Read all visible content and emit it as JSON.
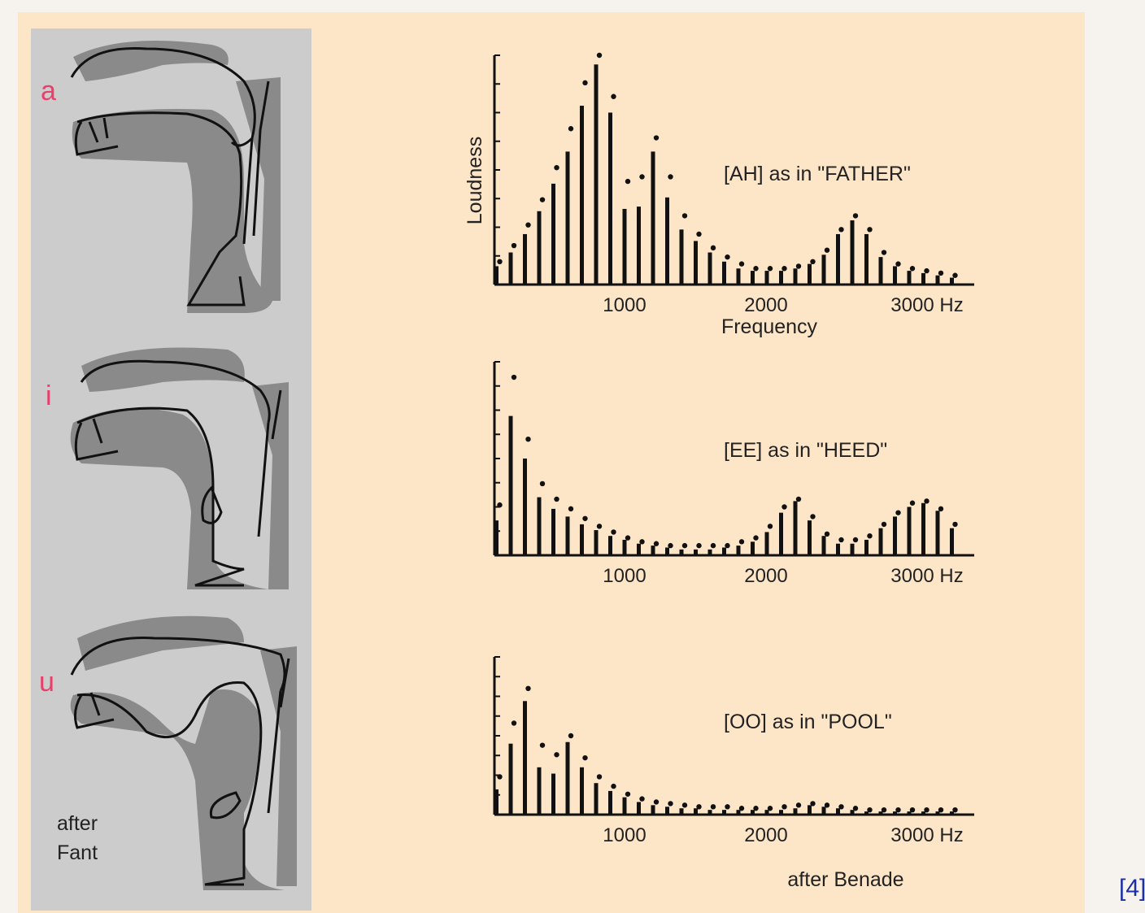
{
  "vowels": [
    {
      "letter": "a",
      "label": "[AH] as in \"FATHER\""
    },
    {
      "letter": "i",
      "label": "[EE] as in \"HEED\""
    },
    {
      "letter": "u",
      "label": "[OO] as in \"POOL\""
    }
  ],
  "credits": {
    "left": "after\nFant",
    "right": "after Benade"
  },
  "reference": "[4]",
  "colors": {
    "vowel_letter": "#e8406a",
    "panel_background": "#fde5c8",
    "vocal_tract_background": "#cccccc",
    "tract_fill": "#8a8a8a"
  },
  "axes": {
    "x_ticks": [
      "1000",
      "2000",
      "3000 Hz"
    ],
    "xlabel": "Frequency",
    "ylabel": "Loudness"
  },
  "chart_data": [
    {
      "type": "bar",
      "title": "[AH] as in \"FATHER\"",
      "xlabel": "Frequency",
      "ylabel": "Loudness",
      "x_ticks": [
        "1000",
        "2000",
        "3000 Hz"
      ],
      "x": [
        100,
        200,
        300,
        400,
        500,
        600,
        700,
        800,
        900,
        1000,
        1100,
        1200,
        1300,
        1400,
        1500,
        1600,
        1700,
        1800,
        1900,
        2000,
        2100,
        2200,
        2300,
        2400,
        2500,
        2600,
        2700,
        2800,
        2900,
        3000,
        3100,
        3200,
        3300
      ],
      "values": [
        0.08,
        0.14,
        0.22,
        0.32,
        0.44,
        0.58,
        0.78,
        0.96,
        0.75,
        0.33,
        0.34,
        0.58,
        0.38,
        0.24,
        0.19,
        0.14,
        0.1,
        0.07,
        0.06,
        0.06,
        0.06,
        0.07,
        0.09,
        0.13,
        0.22,
        0.28,
        0.22,
        0.12,
        0.08,
        0.06,
        0.05,
        0.04,
        0.03
      ],
      "envelope": [
        0.1,
        0.17,
        0.26,
        0.37,
        0.51,
        0.68,
        0.88,
        1.0,
        0.82,
        0.45,
        0.47,
        0.64,
        0.47,
        0.3,
        0.22,
        0.16,
        0.12,
        0.09,
        0.07,
        0.07,
        0.07,
        0.08,
        0.1,
        0.15,
        0.24,
        0.3,
        0.24,
        0.14,
        0.09,
        0.07,
        0.06,
        0.05,
        0.04
      ]
    },
    {
      "type": "bar",
      "title": "[EE] as in \"HEED\"",
      "x_ticks": [
        "1000",
        "2000",
        "3000 Hz"
      ],
      "x": [
        100,
        200,
        300,
        400,
        500,
        600,
        700,
        800,
        900,
        1000,
        1100,
        1200,
        1300,
        1400,
        1500,
        1600,
        1700,
        1800,
        1900,
        2000,
        2100,
        2200,
        2300,
        2400,
        2500,
        2600,
        2700,
        2800,
        2900,
        3000,
        3100,
        3200,
        3300
      ],
      "values": [
        0.18,
        0.72,
        0.5,
        0.3,
        0.24,
        0.2,
        0.16,
        0.13,
        0.1,
        0.08,
        0.06,
        0.05,
        0.04,
        0.03,
        0.03,
        0.03,
        0.04,
        0.05,
        0.07,
        0.12,
        0.22,
        0.28,
        0.18,
        0.1,
        0.06,
        0.06,
        0.08,
        0.14,
        0.2,
        0.25,
        0.27,
        0.23,
        0.14
      ],
      "envelope": [
        0.26,
        0.92,
        0.6,
        0.37,
        0.29,
        0.24,
        0.19,
        0.15,
        0.12,
        0.09,
        0.07,
        0.06,
        0.05,
        0.05,
        0.05,
        0.05,
        0.05,
        0.07,
        0.09,
        0.15,
        0.25,
        0.29,
        0.2,
        0.11,
        0.08,
        0.08,
        0.1,
        0.16,
        0.22,
        0.27,
        0.28,
        0.24,
        0.16
      ]
    },
    {
      "type": "bar",
      "title": "[OO] as in \"POOL\"",
      "x_ticks": [
        "1000",
        "2000",
        "3000 Hz"
      ],
      "x": [
        100,
        200,
        300,
        400,
        500,
        600,
        700,
        800,
        900,
        1000,
        1100,
        1200,
        1300,
        1400,
        1500,
        1600,
        1700,
        1800,
        1900,
        2000,
        2100,
        2200,
        2300,
        2400,
        2500,
        2600,
        2700,
        2800,
        2900,
        3000,
        3100,
        3200,
        3300
      ],
      "values": [
        0.16,
        0.45,
        0.72,
        0.3,
        0.26,
        0.46,
        0.3,
        0.2,
        0.15,
        0.11,
        0.08,
        0.06,
        0.05,
        0.04,
        0.04,
        0.03,
        0.03,
        0.03,
        0.03,
        0.03,
        0.03,
        0.04,
        0.06,
        0.05,
        0.04,
        0.03,
        0.02,
        0.02,
        0.02,
        0.02,
        0.02,
        0.02,
        0.02
      ],
      "envelope": [
        0.24,
        0.58,
        0.8,
        0.44,
        0.38,
        0.5,
        0.36,
        0.24,
        0.18,
        0.13,
        0.1,
        0.08,
        0.07,
        0.06,
        0.05,
        0.05,
        0.05,
        0.04,
        0.04,
        0.04,
        0.05,
        0.06,
        0.07,
        0.06,
        0.05,
        0.04,
        0.03,
        0.03,
        0.03,
        0.03,
        0.03,
        0.03,
        0.03
      ]
    }
  ]
}
